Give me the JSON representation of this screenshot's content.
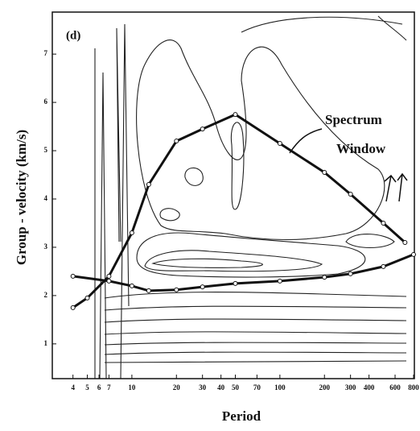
{
  "chart_data": {
    "type": "contour",
    "panel_label": "(d)",
    "xlabel": "Period",
    "ylabel": "Group - velocity (km/s)",
    "annotation": [
      "Spectrum",
      "Window"
    ],
    "xscale": "log",
    "xlim": [
      2.9,
      810
    ],
    "ylim": [
      0.28,
      7.87
    ],
    "xticks": [
      4,
      5,
      6,
      7,
      10,
      20,
      30,
      40,
      50,
      70,
      100,
      200,
      300,
      400,
      600,
      800
    ],
    "yticks": [
      1,
      2,
      3,
      4,
      5,
      6,
      7
    ],
    "series": [
      {
        "color": "#111111",
        "x": [
          4,
          5,
          7,
          10,
          13,
          20,
          30,
          50,
          100,
          200,
          300,
          500,
          700
        ],
        "values": [
          1.75,
          1.95,
          2.4,
          3.3,
          4.3,
          5.2,
          5.45,
          5.75,
          5.15,
          4.55,
          4.1,
          3.5,
          3.1
        ]
      },
      {
        "color": "#111111",
        "x": [
          4,
          7,
          10,
          13,
          20,
          30,
          50,
          100,
          200,
          300,
          500,
          800
        ],
        "values": [
          2.4,
          2.3,
          2.2,
          2.1,
          2.12,
          2.18,
          2.25,
          2.3,
          2.38,
          2.45,
          2.6,
          2.85
        ]
      }
    ]
  }
}
